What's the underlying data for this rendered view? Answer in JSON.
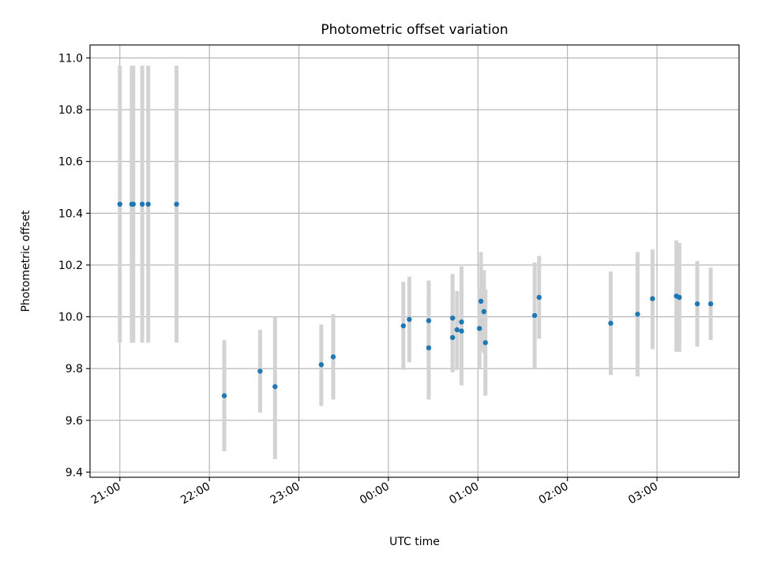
{
  "chart_data": {
    "type": "scatter",
    "title": "Photometric offset variation",
    "xlabel": "UTC time",
    "ylabel": "Photometric offset",
    "grid": true,
    "xlim": [
      "20:40",
      "03:55"
    ],
    "ylim": [
      9.38,
      11.05
    ],
    "x_ticks": [
      "21:00",
      "22:00",
      "23:00",
      "00:00",
      "01:00",
      "02:00",
      "03:00"
    ],
    "y_ticks": [
      9.4,
      9.6,
      9.8,
      10.0,
      10.2,
      10.4,
      10.6,
      10.8,
      11.0
    ],
    "colors": {
      "points": "#1f77b4",
      "error_bars": "#d3d3d3"
    },
    "points": [
      {
        "t": "21:00",
        "y": 10.435,
        "lo": 9.9,
        "hi": 10.97
      },
      {
        "t": "21:08",
        "y": 10.435,
        "lo": 9.9,
        "hi": 10.97
      },
      {
        "t": "21:09",
        "y": 10.435,
        "lo": 9.9,
        "hi": 10.97
      },
      {
        "t": "21:15",
        "y": 10.435,
        "lo": 9.9,
        "hi": 10.97
      },
      {
        "t": "21:19",
        "y": 10.435,
        "lo": 9.9,
        "hi": 10.97
      },
      {
        "t": "21:38",
        "y": 10.435,
        "lo": 9.9,
        "hi": 10.97
      },
      {
        "t": "22:10",
        "y": 9.695,
        "lo": 9.48,
        "hi": 9.91
      },
      {
        "t": "22:34",
        "y": 9.79,
        "lo": 9.63,
        "hi": 9.95
      },
      {
        "t": "22:44",
        "y": 9.73,
        "lo": 9.45,
        "hi": 10.0
      },
      {
        "t": "23:15",
        "y": 9.815,
        "lo": 9.655,
        "hi": 9.97
      },
      {
        "t": "23:23",
        "y": 9.845,
        "lo": 9.68,
        "hi": 10.01
      },
      {
        "t": "00:10",
        "y": 9.965,
        "lo": 9.795,
        "hi": 10.135
      },
      {
        "t": "00:14",
        "y": 9.99,
        "lo": 9.825,
        "hi": 10.155
      },
      {
        "t": "00:27",
        "y": 9.985,
        "lo": 9.83,
        "hi": 10.14
      },
      {
        "t": "00:27",
        "y": 9.88,
        "lo": 9.68,
        "hi": 10.08
      },
      {
        "t": "00:43",
        "y": 9.92,
        "lo": 9.785,
        "hi": 10.06
      },
      {
        "t": "00:43",
        "y": 9.995,
        "lo": 9.825,
        "hi": 10.165
      },
      {
        "t": "00:46",
        "y": 9.95,
        "lo": 9.795,
        "hi": 10.1
      },
      {
        "t": "00:49",
        "y": 9.945,
        "lo": 9.75,
        "hi": 10.14
      },
      {
        "t": "00:49",
        "y": 9.98,
        "lo": 9.735,
        "hi": 10.195
      },
      {
        "t": "01:01",
        "y": 9.955,
        "lo": 9.8,
        "hi": 10.11
      },
      {
        "t": "01:02",
        "y": 10.06,
        "lo": 9.87,
        "hi": 10.25
      },
      {
        "t": "01:04",
        "y": 10.02,
        "lo": 9.86,
        "hi": 10.18
      },
      {
        "t": "01:05",
        "y": 9.9,
        "lo": 9.695,
        "hi": 10.105
      },
      {
        "t": "01:38",
        "y": 10.005,
        "lo": 9.8,
        "hi": 10.21
      },
      {
        "t": "01:41",
        "y": 10.075,
        "lo": 9.915,
        "hi": 10.235
      },
      {
        "t": "02:29",
        "y": 9.975,
        "lo": 9.775,
        "hi": 10.175
      },
      {
        "t": "02:47",
        "y": 10.01,
        "lo": 9.77,
        "hi": 10.25
      },
      {
        "t": "02:57",
        "y": 10.07,
        "lo": 9.875,
        "hi": 10.26
      },
      {
        "t": "03:13",
        "y": 10.08,
        "lo": 9.865,
        "hi": 10.295
      },
      {
        "t": "03:15",
        "y": 10.075,
        "lo": 9.865,
        "hi": 10.285
      },
      {
        "t": "03:27",
        "y": 10.05,
        "lo": 9.885,
        "hi": 10.215
      },
      {
        "t": "03:36",
        "y": 10.05,
        "lo": 9.91,
        "hi": 10.19
      }
    ]
  }
}
